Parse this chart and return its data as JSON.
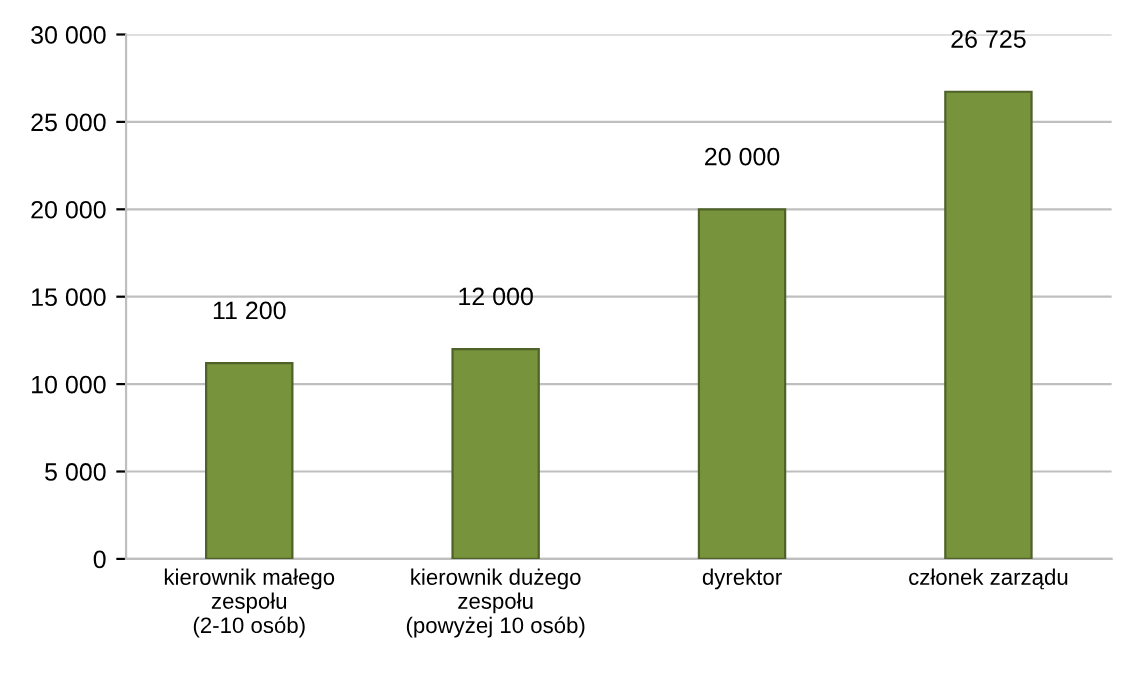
{
  "chart_data": {
    "type": "bar",
    "categories": [
      "kierownik małego\nzespołu\n(2-10 osób)",
      "kierownik dużego\nzespołu\n(powyżej 10 osób)",
      "dyrektor",
      "członek zarządu"
    ],
    "values": [
      11200,
      12000,
      20000,
      26725
    ],
    "value_labels": [
      "11 200",
      "12 000",
      "20 000",
      "26 725"
    ],
    "color": "#77933c",
    "ylim": [
      0,
      30000
    ],
    "yticks": [
      {
        "value": 0,
        "label": "0"
      },
      {
        "value": 5000,
        "label": "5 000"
      },
      {
        "value": 10000,
        "label": "10 000"
      },
      {
        "value": 15000,
        "label": "15 000"
      },
      {
        "value": 20000,
        "label": "20 000"
      },
      {
        "value": 25000,
        "label": "25 000"
      },
      {
        "value": 30000,
        "label": "30 000"
      }
    ],
    "grid": "y"
  }
}
